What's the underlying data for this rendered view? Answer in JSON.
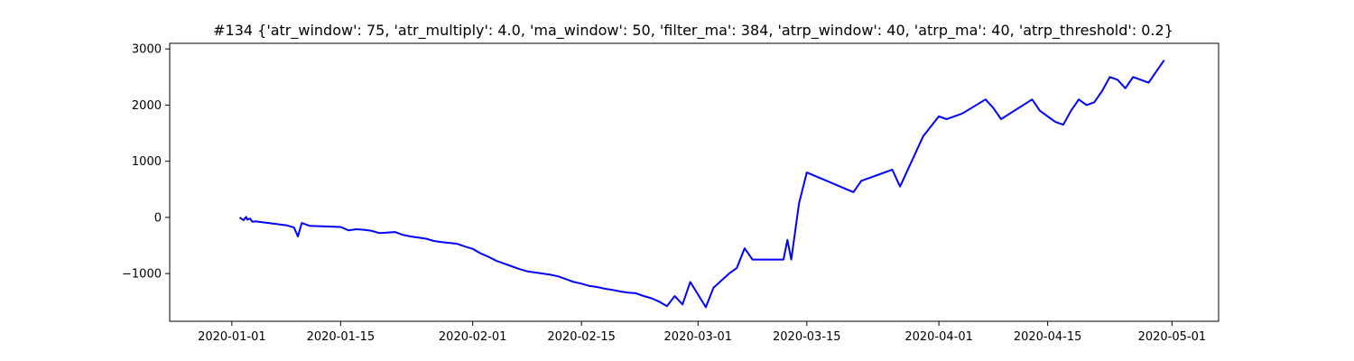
{
  "chart_data": {
    "type": "line",
    "title": "#134 {'atr_window': 75, 'atr_multiply': 4.0, 'ma_window': 50, 'filter_ma': 384, 'atrp_window': 40, 'atrp_ma': 40, 'atrp_threshold': 0.2}",
    "xlabel": "",
    "ylabel": "",
    "grid": false,
    "line_color": "#0000ff",
    "x_ticks": [
      "2020-01-01",
      "2020-01-15",
      "2020-02-01",
      "2020-02-15",
      "2020-03-01",
      "2020-03-15",
      "2020-04-01",
      "2020-04-15",
      "2020-05-01"
    ],
    "y_ticks": [
      -1000,
      0,
      1000,
      2000,
      3000
    ],
    "xlim": [
      "2019-12-24",
      "2020-05-07"
    ],
    "ylim": [
      -1850,
      3100
    ],
    "series": [
      {
        "x": [
          "2020-01-02",
          "2020-01-02T12:00",
          "2020-01-02T20:00",
          "2020-01-03",
          "2020-01-03T08:00",
          "2020-01-03T16:00",
          "2020-01-04",
          "2020-01-08",
          "2020-01-09",
          "2020-01-09T12:00",
          "2020-01-10",
          "2020-01-11",
          "2020-01-15",
          "2020-01-16",
          "2020-01-17",
          "2020-01-18",
          "2020-01-19",
          "2020-01-20",
          "2020-01-22",
          "2020-01-23",
          "2020-01-24",
          "2020-01-25",
          "2020-01-26",
          "2020-01-27",
          "2020-01-28",
          "2020-01-30",
          "2020-01-31",
          "2020-02-01",
          "2020-02-02",
          "2020-02-03",
          "2020-02-04",
          "2020-02-05",
          "2020-02-06",
          "2020-02-07",
          "2020-02-08",
          "2020-02-11",
          "2020-02-12",
          "2020-02-13",
          "2020-02-14",
          "2020-02-15",
          "2020-02-16",
          "2020-02-17",
          "2020-02-18",
          "2020-02-19",
          "2020-02-20",
          "2020-02-21",
          "2020-02-22",
          "2020-02-23",
          "2020-02-24",
          "2020-02-25",
          "2020-02-26",
          "2020-02-27",
          "2020-02-28",
          "2020-02-29",
          "2020-03-02",
          "2020-03-03",
          "2020-03-05",
          "2020-03-06",
          "2020-03-07",
          "2020-03-08",
          "2020-03-12",
          "2020-03-12T12:00",
          "2020-03-13",
          "2020-03-14",
          "2020-03-15",
          "2020-03-21",
          "2020-03-22",
          "2020-03-26",
          "2020-03-27",
          "2020-03-29",
          "2020-03-30",
          "2020-04-01",
          "2020-04-02",
          "2020-04-03",
          "2020-04-04",
          "2020-04-07",
          "2020-04-08",
          "2020-04-09",
          "2020-04-13",
          "2020-04-14",
          "2020-04-15",
          "2020-04-16",
          "2020-04-17",
          "2020-04-18",
          "2020-04-19",
          "2020-04-20",
          "2020-04-21",
          "2020-04-22",
          "2020-04-23",
          "2020-04-24",
          "2020-04-25",
          "2020-04-26",
          "2020-04-27",
          "2020-04-28",
          "2020-04-29",
          "2020-04-30"
        ],
        "values": [
          0,
          -50,
          10,
          -40,
          -20,
          -80,
          -70,
          -140,
          -180,
          -340,
          -100,
          -150,
          -170,
          -230,
          -210,
          -220,
          -240,
          -280,
          -260,
          -310,
          -340,
          -360,
          -380,
          -420,
          -440,
          -470,
          -520,
          -560,
          -640,
          -700,
          -770,
          -820,
          -870,
          -920,
          -960,
          -1020,
          -1050,
          -1100,
          -1150,
          -1180,
          -1220,
          -1240,
          -1270,
          -1290,
          -1320,
          -1340,
          -1350,
          -1400,
          -1440,
          -1500,
          -1580,
          -1400,
          -1550,
          -1150,
          -1600,
          -1250,
          -1000,
          -900,
          -550,
          -750,
          -750,
          -400,
          -750,
          250,
          800,
          450,
          650,
          850,
          550,
          1150,
          1450,
          1800,
          1750,
          1800,
          1850,
          2100,
          1950,
          1750,
          2100,
          1900,
          1800,
          1700,
          1650,
          1900,
          2100,
          2000,
          2050,
          2250,
          2500,
          2450,
          2300,
          2500,
          2450,
          2400,
          2600,
          2800
        ]
      }
    ]
  }
}
